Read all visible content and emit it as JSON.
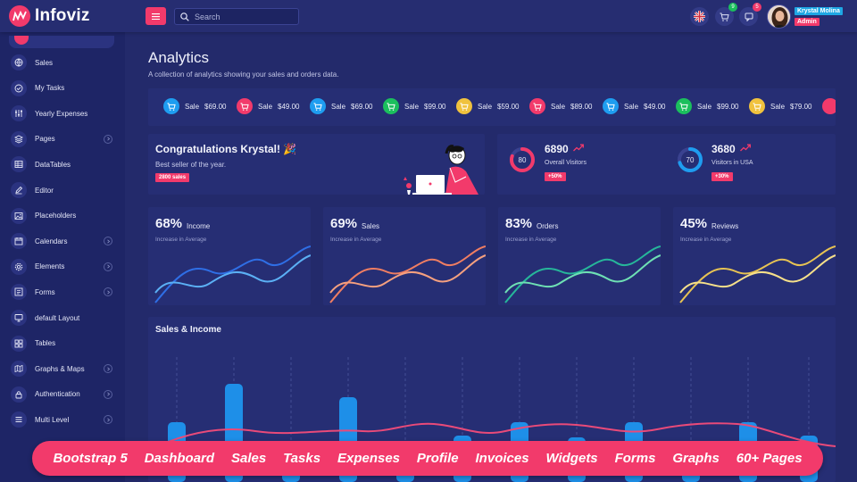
{
  "header": {
    "brand": "Infoviz",
    "search_placeholder": "Search",
    "cart_badge": "9",
    "msg_badge": "5",
    "user_name": "Krystal Molina",
    "user_role": "Admin"
  },
  "sidebar": {
    "items": [
      {
        "label": "Sales",
        "icon": "globe-icon",
        "chevron": false
      },
      {
        "label": "My Tasks",
        "icon": "tasks-icon",
        "chevron": false
      },
      {
        "label": "Yearly Expenses",
        "icon": "sliders-icon",
        "chevron": false
      },
      {
        "label": "Pages",
        "icon": "layers-icon",
        "chevron": true
      },
      {
        "label": "DataTables",
        "icon": "table-icon",
        "chevron": false
      },
      {
        "label": "Editor",
        "icon": "pencil-icon",
        "chevron": false
      },
      {
        "label": "Placeholders",
        "icon": "image-icon",
        "chevron": false
      },
      {
        "label": "Calendars",
        "icon": "calendar-icon",
        "chevron": true
      },
      {
        "label": "Elements",
        "icon": "gear-icon",
        "chevron": true
      },
      {
        "label": "Forms",
        "icon": "form-icon",
        "chevron": true
      },
      {
        "label": "default Layout",
        "icon": "monitor-icon",
        "chevron": false
      },
      {
        "label": "Tables",
        "icon": "grid-icon",
        "chevron": false
      },
      {
        "label": "Graphs & Maps",
        "icon": "map-icon",
        "chevron": true
      },
      {
        "label": "Authentication",
        "icon": "lock-icon",
        "chevron": true
      },
      {
        "label": "Multi Level",
        "icon": "menu-icon",
        "chevron": true
      }
    ]
  },
  "page": {
    "title": "Analytics",
    "subtitle": "A collection of analytics showing your sales and orders data."
  },
  "ticker": [
    {
      "label": "Sale",
      "amount": "$69.00",
      "color": "#1e9df0"
    },
    {
      "label": "Sale",
      "amount": "$49.00",
      "color": "#f23a6b"
    },
    {
      "label": "Sale",
      "amount": "$69.00",
      "color": "#1e9df0"
    },
    {
      "label": "Sale",
      "amount": "$99.00",
      "color": "#1bbf5d"
    },
    {
      "label": "Sale",
      "amount": "$59.00",
      "color": "#f0c23e"
    },
    {
      "label": "Sale",
      "amount": "$89.00",
      "color": "#f23a6b"
    },
    {
      "label": "Sale",
      "amount": "$49.00",
      "color": "#1e9df0"
    },
    {
      "label": "Sale",
      "amount": "$99.00",
      "color": "#1bbf5d"
    },
    {
      "label": "Sale",
      "amount": "$79.00",
      "color": "#f0c23e"
    }
  ],
  "congrats": {
    "title": "Congratulations Krystal! 🎉",
    "subtitle": "Best seller of the year.",
    "badge": "2800 sales"
  },
  "stats": [
    {
      "value": "6890",
      "label": "Overall Visitors",
      "badge": "+50%",
      "donut": "80",
      "percent": 80,
      "color": "#f23a6b"
    },
    {
      "value": "3680",
      "label": "Visitors in USA",
      "badge": "+30%",
      "donut": "70",
      "percent": 70,
      "color": "#1e9df0"
    }
  ],
  "metrics": [
    {
      "pct": "68%",
      "name": "Income",
      "sub": "Increase in Average",
      "colors": [
        "#2f6fe6",
        "#5bb0f5"
      ]
    },
    {
      "pct": "69%",
      "name": "Sales",
      "sub": "Increase in Average",
      "colors": [
        "#f07e62",
        "#f5a07f"
      ]
    },
    {
      "pct": "83%",
      "name": "Orders",
      "sub": "Increase in Average",
      "colors": [
        "#26b79a",
        "#6ee0b4"
      ]
    },
    {
      "pct": "45%",
      "name": "Reviews",
      "sub": "Increase in Average",
      "colors": [
        "#e7c353",
        "#f6e08a"
      ]
    }
  ],
  "sales_income": {
    "title": "Sales & Income"
  },
  "banner": [
    "Bootstrap 5",
    "Dashboard",
    "Sales",
    "Tasks",
    "Expenses",
    "Profile",
    "Invoices",
    "Widgets",
    "Forms",
    "Graphs",
    "60+ Pages"
  ]
}
